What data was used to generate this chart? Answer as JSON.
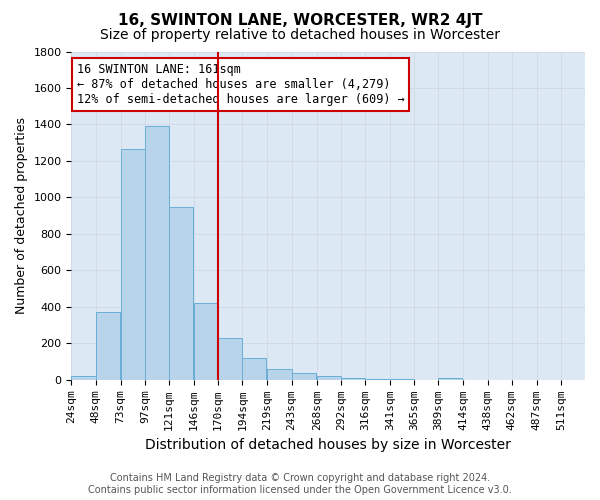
{
  "title": "16, SWINTON LANE, WORCESTER, WR2 4JT",
  "subtitle": "Size of property relative to detached houses in Worcester",
  "xlabel": "Distribution of detached houses by size in Worcester",
  "ylabel": "Number of detached properties",
  "footnote1": "Contains HM Land Registry data © Crown copyright and database right 2024.",
  "footnote2": "Contains public sector information licensed under the Open Government Licence v3.0.",
  "annotation_line1": "16 SWINTON LANE: 161sqm",
  "annotation_line2": "← 87% of detached houses are smaller (4,279)",
  "annotation_line3": "12% of semi-detached houses are larger (609) →",
  "bar_labels": [
    "24sqm",
    "48sqm",
    "73sqm",
    "97sqm",
    "121sqm",
    "146sqm",
    "170sqm",
    "194sqm",
    "219sqm",
    "243sqm",
    "268sqm",
    "292sqm",
    "316sqm",
    "341sqm",
    "365sqm",
    "389sqm",
    "414sqm",
    "438sqm",
    "462sqm",
    "487sqm",
    "511sqm"
  ],
  "bar_values": [
    20,
    375,
    1265,
    1390,
    950,
    420,
    230,
    120,
    60,
    40,
    20,
    10,
    5,
    3,
    2,
    10,
    1,
    0,
    0,
    0,
    0
  ],
  "bar_edges": [
    24,
    48,
    73,
    97,
    121,
    146,
    170,
    194,
    219,
    243,
    268,
    292,
    316,
    341,
    365,
    389,
    414,
    438,
    462,
    487,
    511
  ],
  "bin_width": 24,
  "ylim": [
    0,
    1800
  ],
  "yticks": [
    0,
    200,
    400,
    600,
    800,
    1000,
    1200,
    1400,
    1600,
    1800
  ],
  "vline_x": 170,
  "bar_color": "#b8d4ea",
  "bar_edge_color": "#6aaed6",
  "vline_color": "#cc0000",
  "grid_color": "#d0d8e4",
  "bg_color": "#dce8f4",
  "annotation_box_facecolor": "#ffffff",
  "annotation_box_edgecolor": "#cc0000",
  "title_fontsize": 11,
  "subtitle_fontsize": 10,
  "xlabel_fontsize": 10,
  "ylabel_fontsize": 9,
  "tick_fontsize": 8,
  "annotation_fontsize": 8.5,
  "footnote_fontsize": 7
}
